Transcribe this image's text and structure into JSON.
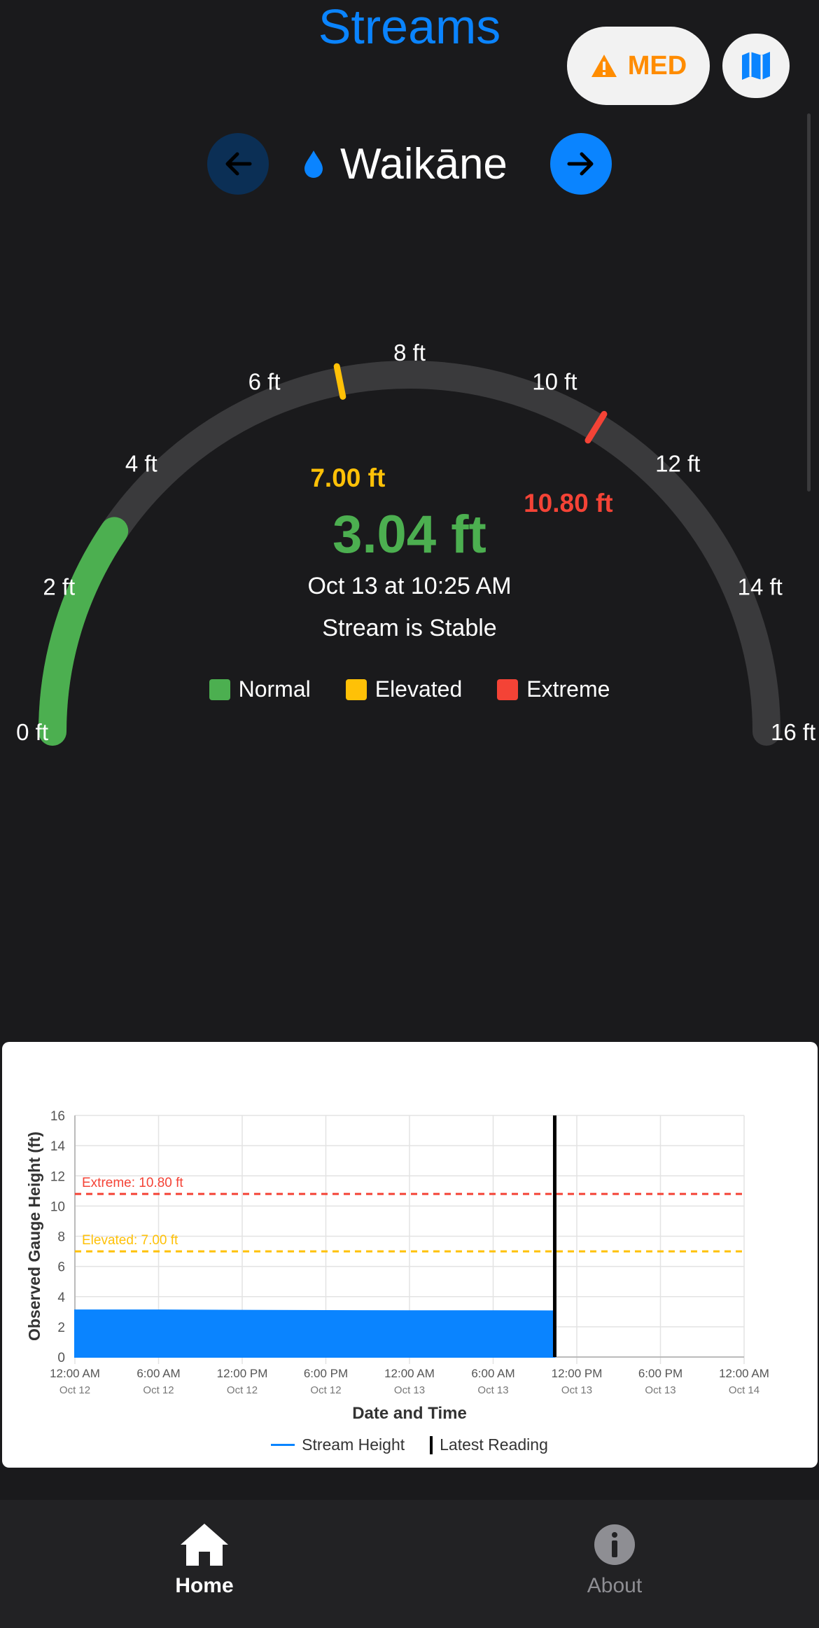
{
  "header": {
    "title": "Streams",
    "risk_label": "MED",
    "colors": {
      "accent": "#0a84ff",
      "risk": "#ff8c00"
    }
  },
  "station": {
    "name": "Waikāne",
    "icon": "water-drop-icon"
  },
  "gauge": {
    "min": 0,
    "max": 16,
    "ticks": [
      "0 ft",
      "2 ft",
      "4 ft",
      "6 ft",
      "8 ft",
      "10 ft",
      "12 ft",
      "14 ft",
      "16 ft"
    ],
    "current_value": 3.04,
    "elevated_threshold": 7.0,
    "extreme_threshold": 10.8,
    "elevated_label": "7.00 ft",
    "extreme_label": "10.80 ft",
    "colors": {
      "normal": "#4caf50",
      "elevated": "#ffc107",
      "extreme": "#f44336",
      "track": "#3a3a3c"
    }
  },
  "reading": {
    "value": "3.04 ft",
    "timestamp": "Oct 13 at 10:25 AM",
    "status": "Stream is Stable"
  },
  "legend": [
    "Normal",
    "Elevated",
    "Extreme"
  ],
  "chart_data": {
    "type": "area",
    "ylabel": "Observed Gauge Height (ft)",
    "xlabel": "Date and Time",
    "ylim": [
      0,
      16
    ],
    "yticks": [
      "0",
      "2",
      "4",
      "6",
      "8",
      "10",
      "12",
      "14",
      "16"
    ],
    "xticks": [
      {
        "time": "12:00 AM",
        "date": "Oct 12"
      },
      {
        "time": "6:00 AM",
        "date": "Oct 12"
      },
      {
        "time": "12:00 PM",
        "date": "Oct 12"
      },
      {
        "time": "6:00 PM",
        "date": "Oct 12"
      },
      {
        "time": "12:00 AM",
        "date": "Oct 13"
      },
      {
        "time": "6:00 AM",
        "date": "Oct 13"
      },
      {
        "time": "12:00 PM",
        "date": "Oct 13"
      },
      {
        "time": "6:00 PM",
        "date": "Oct 13"
      },
      {
        "time": "12:00 AM",
        "date": "Oct 14"
      }
    ],
    "series": [
      {
        "name": "Stream Height",
        "x": [
          "Oct 12 12:00 AM",
          "Oct 12 6:00 AM",
          "Oct 12 12:00 PM",
          "Oct 12 6:00 PM",
          "Oct 13 12:00 AM",
          "Oct 13 6:00 AM",
          "Oct 13 10:25 AM"
        ],
        "values": [
          3.1,
          3.1,
          3.08,
          3.06,
          3.05,
          3.05,
          3.04
        ],
        "color": "#0a84ff"
      }
    ],
    "thresholds": [
      {
        "label": "Extreme: 10.80 ft",
        "value": 10.8,
        "color": "#f44336"
      },
      {
        "label": "Elevated: 7.00 ft",
        "value": 7.0,
        "color": "#ffc107"
      }
    ],
    "latest_reading_x": "Oct 13 10:25 AM",
    "legend": [
      "Stream Height",
      "Latest Reading"
    ],
    "grid": true
  },
  "tabs": [
    {
      "label": "Home",
      "icon": "home-icon",
      "active": true
    },
    {
      "label": "About",
      "icon": "info-icon",
      "active": false
    }
  ]
}
